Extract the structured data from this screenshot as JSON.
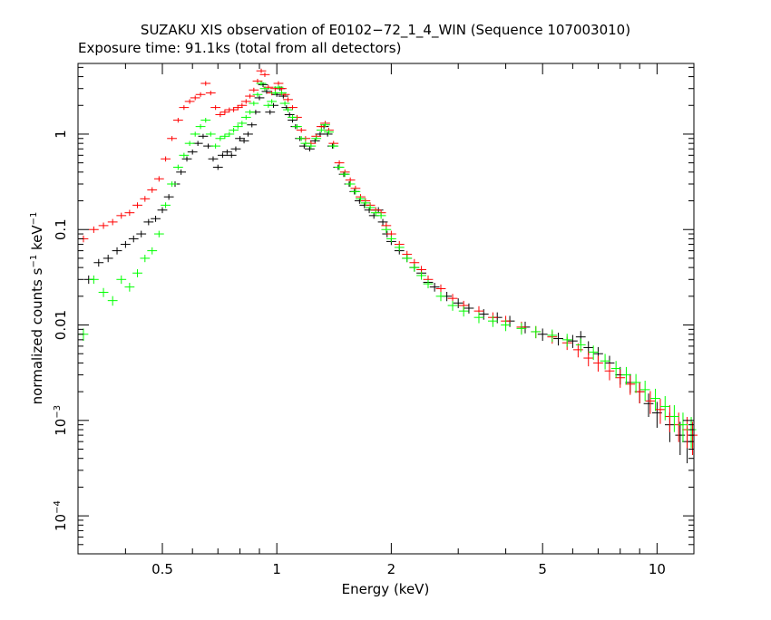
{
  "chart_data": {
    "type": "scatter",
    "title": "SUZAKU XIS observation of E0102−72_1_4_WIN (Sequence 107003010)",
    "subtitle": "Exposure time: 91.1ks (total from all detectors)",
    "xlabel": "Energy (keV)",
    "ylabel_main": "normalized counts s",
    "ylabel_exp1": "−1",
    "ylabel_mid": " keV",
    "ylabel_exp2": "−1",
    "xscale": "log",
    "yscale": "log",
    "xlim": [
      0.3,
      12.5
    ],
    "ylim": [
      4e-05,
      5.5
    ],
    "grid": false,
    "colors": {
      "black": "#000000",
      "red": "#ff0000",
      "green": "#00ff00"
    },
    "x_ticks": [
      {
        "value": 0.5,
        "label": "0.5"
      },
      {
        "value": 1,
        "label": "1"
      },
      {
        "value": 2,
        "label": "2"
      },
      {
        "value": 5,
        "label": "5"
      },
      {
        "value": 10,
        "label": "10"
      }
    ],
    "y_ticks": [
      {
        "value": 1,
        "label": "1"
      },
      {
        "value": 0.1,
        "label": "0.1"
      },
      {
        "value": 0.01,
        "label": "0.01"
      },
      {
        "value": 0.001,
        "base": "10",
        "exp": "−3"
      },
      {
        "value": 0.0001,
        "base": "10",
        "exp": "−4"
      }
    ],
    "series": [
      {
        "color": "black",
        "points": [
          [
            0.32,
            0.03
          ],
          [
            0.34,
            0.045
          ],
          [
            0.36,
            0.05
          ],
          [
            0.38,
            0.06
          ],
          [
            0.4,
            0.07
          ],
          [
            0.42,
            0.08
          ],
          [
            0.44,
            0.09
          ],
          [
            0.46,
            0.12
          ],
          [
            0.48,
            0.13
          ],
          [
            0.5,
            0.16
          ],
          [
            0.52,
            0.22
          ],
          [
            0.54,
            0.3
          ],
          [
            0.56,
            0.4
          ],
          [
            0.58,
            0.55
          ],
          [
            0.6,
            0.65
          ],
          [
            0.62,
            0.8
          ],
          [
            0.64,
            0.95
          ],
          [
            0.66,
            0.75
          ],
          [
            0.68,
            0.55
          ],
          [
            0.7,
            0.45
          ],
          [
            0.72,
            0.6
          ],
          [
            0.74,
            0.65
          ],
          [
            0.76,
            0.6
          ],
          [
            0.78,
            0.7
          ],
          [
            0.8,
            0.9
          ],
          [
            0.82,
            0.85
          ],
          [
            0.84,
            1.0
          ],
          [
            0.86,
            1.25
          ],
          [
            0.88,
            1.7
          ],
          [
            0.9,
            2.4
          ],
          [
            0.92,
            3.3
          ],
          [
            0.94,
            2.8
          ],
          [
            0.96,
            1.7
          ],
          [
            0.98,
            2.0
          ],
          [
            1.0,
            2.6
          ],
          [
            1.02,
            3.0
          ],
          [
            1.04,
            2.5
          ],
          [
            1.06,
            1.9
          ],
          [
            1.08,
            1.6
          ],
          [
            1.1,
            1.4
          ],
          [
            1.12,
            1.2
          ],
          [
            1.15,
            0.9
          ],
          [
            1.18,
            0.75
          ],
          [
            1.22,
            0.7
          ],
          [
            1.26,
            0.85
          ],
          [
            1.3,
            1.0
          ],
          [
            1.33,
            1.2
          ],
          [
            1.36,
            1.0
          ],
          [
            1.4,
            0.75
          ],
          [
            1.45,
            0.45
          ],
          [
            1.5,
            0.38
          ],
          [
            1.55,
            0.3
          ],
          [
            1.6,
            0.25
          ],
          [
            1.65,
            0.2
          ],
          [
            1.7,
            0.18
          ],
          [
            1.75,
            0.16
          ],
          [
            1.8,
            0.14
          ],
          [
            1.85,
            0.16
          ],
          [
            1.9,
            0.12
          ],
          [
            1.95,
            0.09
          ],
          [
            2.0,
            0.075
          ],
          [
            2.1,
            0.06
          ],
          [
            2.2,
            0.05
          ],
          [
            2.3,
            0.04
          ],
          [
            2.4,
            0.035
          ],
          [
            2.5,
            0.028
          ],
          [
            2.6,
            0.025
          ],
          [
            2.8,
            0.02
          ],
          [
            3.0,
            0.017
          ],
          [
            3.2,
            0.015
          ],
          [
            3.5,
            0.013
          ],
          [
            3.8,
            0.012
          ],
          [
            4.1,
            0.011
          ],
          [
            4.5,
            0.0095
          ],
          [
            5.0,
            0.008
          ],
          [
            5.5,
            0.0072
          ],
          [
            6.0,
            0.0068
          ],
          [
            6.3,
            0.0075
          ],
          [
            6.6,
            0.0058
          ],
          [
            7.0,
            0.005
          ],
          [
            7.5,
            0.004
          ],
          [
            8.0,
            0.003
          ],
          [
            8.5,
            0.0025
          ],
          [
            9.0,
            0.002
          ],
          [
            9.5,
            0.0015
          ],
          [
            10.0,
            0.0012
          ],
          [
            10.8,
            0.0009
          ],
          [
            11.5,
            0.0007
          ],
          [
            12.0,
            0.0006
          ]
        ]
      },
      {
        "color": "red",
        "points": [
          [
            0.31,
            0.08
          ],
          [
            0.33,
            0.1
          ],
          [
            0.35,
            0.11
          ],
          [
            0.37,
            0.12
          ],
          [
            0.39,
            0.14
          ],
          [
            0.41,
            0.15
          ],
          [
            0.43,
            0.18
          ],
          [
            0.45,
            0.21
          ],
          [
            0.47,
            0.26
          ],
          [
            0.49,
            0.34
          ],
          [
            0.51,
            0.55
          ],
          [
            0.53,
            0.9
          ],
          [
            0.55,
            1.4
          ],
          [
            0.57,
            1.9
          ],
          [
            0.59,
            2.2
          ],
          [
            0.61,
            2.4
          ],
          [
            0.63,
            2.6
          ],
          [
            0.65,
            3.4
          ],
          [
            0.67,
            2.7
          ],
          [
            0.69,
            1.9
          ],
          [
            0.71,
            1.6
          ],
          [
            0.73,
            1.7
          ],
          [
            0.75,
            1.8
          ],
          [
            0.77,
            1.8
          ],
          [
            0.79,
            1.9
          ],
          [
            0.81,
            2.0
          ],
          [
            0.83,
            2.2
          ],
          [
            0.85,
            2.5
          ],
          [
            0.87,
            2.9
          ],
          [
            0.89,
            3.6
          ],
          [
            0.91,
            4.6
          ],
          [
            0.93,
            4.2
          ],
          [
            0.95,
            3.1
          ],
          [
            0.97,
            2.7
          ],
          [
            0.99,
            3.0
          ],
          [
            1.01,
            3.4
          ],
          [
            1.03,
            3.0
          ],
          [
            1.05,
            2.6
          ],
          [
            1.07,
            2.3
          ],
          [
            1.1,
            1.9
          ],
          [
            1.13,
            1.5
          ],
          [
            1.16,
            1.1
          ],
          [
            1.19,
            0.9
          ],
          [
            1.23,
            0.8
          ],
          [
            1.27,
            0.95
          ],
          [
            1.31,
            1.2
          ],
          [
            1.34,
            1.3
          ],
          [
            1.37,
            1.1
          ],
          [
            1.41,
            0.8
          ],
          [
            1.46,
            0.5
          ],
          [
            1.51,
            0.4
          ],
          [
            1.56,
            0.33
          ],
          [
            1.61,
            0.27
          ],
          [
            1.66,
            0.22
          ],
          [
            1.71,
            0.2
          ],
          [
            1.76,
            0.18
          ],
          [
            1.82,
            0.16
          ],
          [
            1.88,
            0.15
          ],
          [
            1.94,
            0.11
          ],
          [
            2.0,
            0.09
          ],
          [
            2.1,
            0.07
          ],
          [
            2.2,
            0.055
          ],
          [
            2.3,
            0.045
          ],
          [
            2.4,
            0.038
          ],
          [
            2.5,
            0.03
          ],
          [
            2.7,
            0.024
          ],
          [
            2.9,
            0.019
          ],
          [
            3.1,
            0.016
          ],
          [
            3.4,
            0.014
          ],
          [
            3.7,
            0.012
          ],
          [
            4.0,
            0.011
          ],
          [
            4.4,
            0.0095
          ],
          [
            4.8,
            0.0085
          ],
          [
            5.3,
            0.0075
          ],
          [
            5.8,
            0.0065
          ],
          [
            6.2,
            0.0055
          ],
          [
            6.6,
            0.0045
          ],
          [
            7.0,
            0.004
          ],
          [
            7.5,
            0.0033
          ],
          [
            8.0,
            0.0028
          ],
          [
            8.5,
            0.0024
          ],
          [
            9.0,
            0.002
          ],
          [
            9.6,
            0.0016
          ],
          [
            10.2,
            0.0013
          ],
          [
            10.8,
            0.0011
          ],
          [
            11.4,
            0.0009
          ],
          [
            12.0,
            0.0008
          ],
          [
            12.4,
            0.0007
          ]
        ]
      },
      {
        "color": "green",
        "points": [
          [
            0.31,
            0.008
          ],
          [
            0.33,
            0.03
          ],
          [
            0.35,
            0.022
          ],
          [
            0.37,
            0.018
          ],
          [
            0.39,
            0.03
          ],
          [
            0.41,
            0.025
          ],
          [
            0.43,
            0.035
          ],
          [
            0.45,
            0.05
          ],
          [
            0.47,
            0.06
          ],
          [
            0.49,
            0.09
          ],
          [
            0.51,
            0.18
          ],
          [
            0.53,
            0.3
          ],
          [
            0.55,
            0.45
          ],
          [
            0.57,
            0.6
          ],
          [
            0.59,
            0.8
          ],
          [
            0.61,
            1.0
          ],
          [
            0.63,
            1.2
          ],
          [
            0.65,
            1.4
          ],
          [
            0.67,
            1.0
          ],
          [
            0.69,
            0.75
          ],
          [
            0.71,
            0.9
          ],
          [
            0.73,
            0.95
          ],
          [
            0.75,
            1.0
          ],
          [
            0.77,
            1.1
          ],
          [
            0.79,
            1.2
          ],
          [
            0.81,
            1.3
          ],
          [
            0.83,
            1.5
          ],
          [
            0.85,
            1.7
          ],
          [
            0.87,
            2.1
          ],
          [
            0.89,
            2.6
          ],
          [
            0.91,
            3.4
          ],
          [
            0.93,
            3.0
          ],
          [
            0.95,
            2.0
          ],
          [
            0.97,
            2.2
          ],
          [
            0.99,
            2.7
          ],
          [
            1.01,
            3.1
          ],
          [
            1.03,
            2.7
          ],
          [
            1.05,
            2.1
          ],
          [
            1.07,
            1.8
          ],
          [
            1.1,
            1.5
          ],
          [
            1.13,
            1.2
          ],
          [
            1.16,
            0.9
          ],
          [
            1.19,
            0.8
          ],
          [
            1.23,
            0.75
          ],
          [
            1.27,
            0.9
          ],
          [
            1.31,
            1.1
          ],
          [
            1.34,
            1.25
          ],
          [
            1.37,
            1.05
          ],
          [
            1.41,
            0.75
          ],
          [
            1.46,
            0.45
          ],
          [
            1.51,
            0.38
          ],
          [
            1.56,
            0.3
          ],
          [
            1.61,
            0.25
          ],
          [
            1.66,
            0.21
          ],
          [
            1.71,
            0.19
          ],
          [
            1.76,
            0.17
          ],
          [
            1.82,
            0.15
          ],
          [
            1.88,
            0.14
          ],
          [
            1.94,
            0.1
          ],
          [
            2.0,
            0.08
          ],
          [
            2.1,
            0.065
          ],
          [
            2.2,
            0.05
          ],
          [
            2.3,
            0.04
          ],
          [
            2.4,
            0.033
          ],
          [
            2.5,
            0.027
          ],
          [
            2.7,
            0.02
          ],
          [
            2.9,
            0.016
          ],
          [
            3.1,
            0.014
          ],
          [
            3.4,
            0.012
          ],
          [
            3.7,
            0.011
          ],
          [
            4.0,
            0.01
          ],
          [
            4.4,
            0.0092
          ],
          [
            4.8,
            0.0085
          ],
          [
            5.3,
            0.0078
          ],
          [
            5.8,
            0.007
          ],
          [
            6.3,
            0.0062
          ],
          [
            6.8,
            0.0052
          ],
          [
            7.3,
            0.0042
          ],
          [
            7.8,
            0.0035
          ],
          [
            8.3,
            0.003
          ],
          [
            8.8,
            0.0025
          ],
          [
            9.3,
            0.0021
          ],
          [
            9.9,
            0.0017
          ],
          [
            10.5,
            0.0014
          ],
          [
            11.1,
            0.0011
          ],
          [
            11.7,
            0.0009
          ],
          [
            12.3,
            0.0008
          ]
        ]
      }
    ]
  }
}
